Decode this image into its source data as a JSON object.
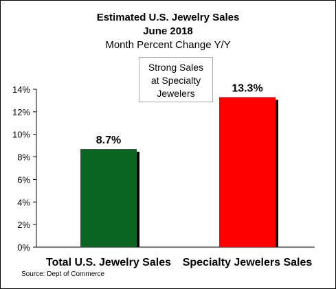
{
  "chart_data": {
    "type": "bar",
    "title": "Estimated U.S. Jewelry Sales",
    "subtitle_1": "June 2018",
    "subtitle_2": "Month Percent Change Y/Y",
    "categories": [
      "Total U.S. Jewelry Sales",
      "Specialty Jewelers Sales"
    ],
    "values": [
      8.7,
      13.3
    ],
    "data_labels": [
      "8.7%",
      "13.3%"
    ],
    "bar_colors": [
      "#0b6623",
      "#ff0000"
    ],
    "ylim": [
      0,
      14
    ],
    "yticks": [
      0,
      2,
      4,
      6,
      8,
      10,
      12,
      14
    ],
    "ytick_labels": [
      "0%",
      "2%",
      "4%",
      "6%",
      "8%",
      "10%",
      "12%",
      "14%"
    ],
    "grid": false,
    "legend": "none",
    "annotation": [
      "Strong Sales",
      "at Specialty",
      "Jewelers"
    ]
  },
  "source": "Source:  Dept of Commerce"
}
